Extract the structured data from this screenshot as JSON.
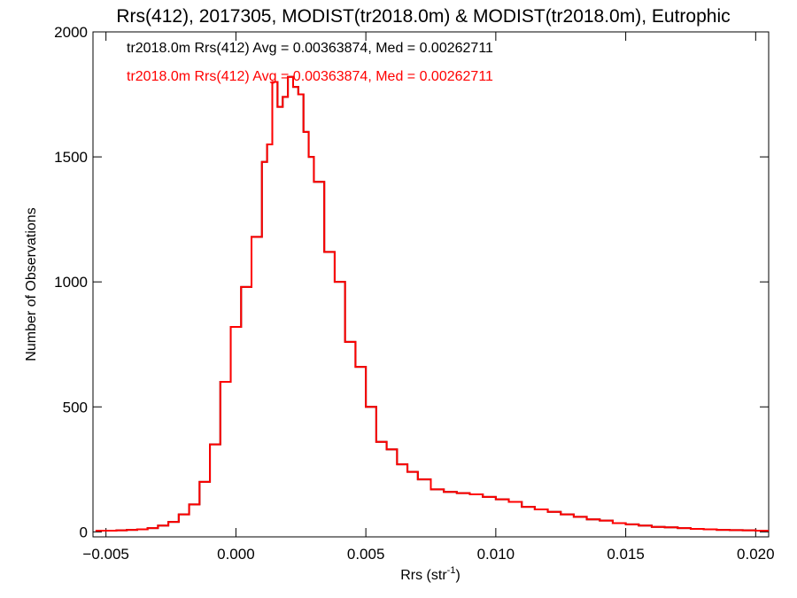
{
  "chart_data": {
    "type": "step",
    "title": "Rrs(412), 2017305, MODIST(tr2018.0m) & MODIST(tr2018.0m), Eutrophic",
    "xlabel": "Rrs (str",
    "xlabel_sup": "-1",
    "xlabel_close": ")",
    "ylabel": "Number of Observations",
    "xlim": [
      -0.0055,
      0.0205
    ],
    "ylim": [
      -20,
      2000
    ],
    "xticks": [
      -0.005,
      0.0,
      0.005,
      0.01,
      0.015,
      0.02
    ],
    "xtick_labels": [
      "−0.005",
      "0.000",
      "0.005",
      "0.010",
      "0.015",
      "0.020"
    ],
    "yticks": [
      0,
      500,
      1000,
      1500,
      2000
    ],
    "ytick_labels": [
      "0",
      "500",
      "1000",
      "1500",
      "2000"
    ],
    "annotations": [
      {
        "text": "tr2018.0m Rrs(412) Avg = 0.00363874, Med = 0.00262711",
        "color": "#000000"
      },
      {
        "text": "tr2018.0m Rrs(412) Avg = 0.00363874, Med = 0.00262711",
        "color": "#ff0000"
      }
    ],
    "series": [
      {
        "color": "#000000",
        "x": [
          -0.0054,
          -0.005,
          -0.0046,
          -0.0042,
          -0.0038,
          -0.0034,
          -0.003,
          -0.0026,
          -0.0022,
          -0.0018,
          -0.0014,
          -0.001,
          -0.0006,
          -0.0002,
          0.0002,
          0.0006,
          0.001,
          0.0012,
          0.0014,
          0.0016,
          0.0018,
          0.002,
          0.0022,
          0.0024,
          0.0026,
          0.0028,
          0.003,
          0.0034,
          0.0038,
          0.0042,
          0.0046,
          0.005,
          0.0054,
          0.0058,
          0.0062,
          0.0066,
          0.007,
          0.0075,
          0.008,
          0.0085,
          0.009,
          0.0095,
          0.01,
          0.0105,
          0.011,
          0.0115,
          0.012,
          0.0125,
          0.013,
          0.0135,
          0.014,
          0.0145,
          0.015,
          0.0155,
          0.016,
          0.0165,
          0.017,
          0.0175,
          0.018,
          0.0185,
          0.019,
          0.0195,
          0.02,
          0.0205
        ],
        "y": [
          5,
          5,
          6,
          8,
          10,
          15,
          25,
          40,
          70,
          110,
          200,
          350,
          600,
          820,
          980,
          1180,
          1480,
          1550,
          1800,
          1700,
          1740,
          1820,
          1780,
          1750,
          1600,
          1500,
          1400,
          1120,
          1000,
          760,
          660,
          500,
          360,
          330,
          270,
          240,
          210,
          170,
          160,
          155,
          150,
          140,
          130,
          120,
          100,
          90,
          80,
          70,
          60,
          50,
          45,
          35,
          30,
          25,
          20,
          18,
          15,
          12,
          10,
          8,
          7,
          6,
          5,
          5
        ]
      },
      {
        "color": "#ff0000",
        "x": [
          -0.0054,
          -0.005,
          -0.0046,
          -0.0042,
          -0.0038,
          -0.0034,
          -0.003,
          -0.0026,
          -0.0022,
          -0.0018,
          -0.0014,
          -0.001,
          -0.0006,
          -0.0002,
          0.0002,
          0.0006,
          0.001,
          0.0012,
          0.0014,
          0.0016,
          0.0018,
          0.002,
          0.0022,
          0.0024,
          0.0026,
          0.0028,
          0.003,
          0.0034,
          0.0038,
          0.0042,
          0.0046,
          0.005,
          0.0054,
          0.0058,
          0.0062,
          0.0066,
          0.007,
          0.0075,
          0.008,
          0.0085,
          0.009,
          0.0095,
          0.01,
          0.0105,
          0.011,
          0.0115,
          0.012,
          0.0125,
          0.013,
          0.0135,
          0.014,
          0.0145,
          0.015,
          0.0155,
          0.016,
          0.0165,
          0.017,
          0.0175,
          0.018,
          0.0185,
          0.019,
          0.0195,
          0.02,
          0.0205
        ],
        "y": [
          5,
          5,
          6,
          8,
          10,
          15,
          25,
          40,
          70,
          110,
          200,
          350,
          600,
          820,
          980,
          1180,
          1480,
          1550,
          1800,
          1700,
          1740,
          1820,
          1780,
          1750,
          1600,
          1500,
          1400,
          1120,
          1000,
          760,
          660,
          500,
          360,
          330,
          270,
          240,
          210,
          170,
          160,
          155,
          150,
          140,
          130,
          120,
          100,
          90,
          80,
          70,
          60,
          50,
          45,
          35,
          30,
          25,
          20,
          18,
          15,
          12,
          10,
          8,
          7,
          6,
          5,
          5
        ]
      }
    ]
  }
}
